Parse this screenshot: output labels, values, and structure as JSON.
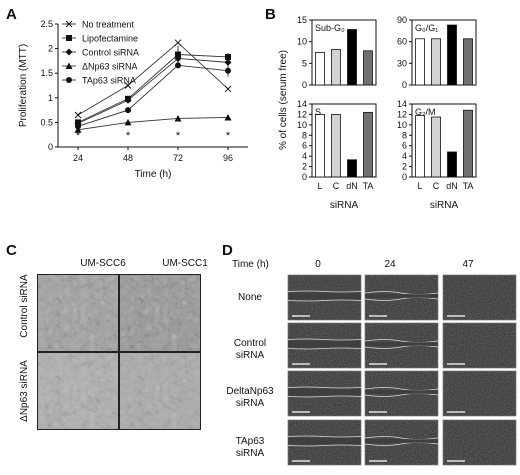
{
  "panels": {
    "A": "A",
    "B": "B",
    "C": "C",
    "D": "D"
  },
  "chart_data": [
    {
      "type": "line",
      "id": "A",
      "xlabel": "Time (h)",
      "ylabel": "Proliferation (MTT)",
      "x": [
        24,
        48,
        72,
        96
      ],
      "ylim": [
        0,
        2.5
      ],
      "yticks": [
        "0",
        "0.5",
        "1",
        "1.5",
        "2",
        "2.5"
      ],
      "xticks": [
        "24",
        "48",
        "72",
        "96"
      ],
      "series": [
        {
          "name": "No treatment",
          "marker": "x",
          "values": [
            0.65,
            1.25,
            2.12,
            1.18
          ]
        },
        {
          "name": "Lipofectamine",
          "marker": "square",
          "values": [
            0.5,
            0.98,
            1.88,
            1.83
          ]
        },
        {
          "name": "Control siRNA",
          "marker": "diamond",
          "values": [
            0.48,
            0.95,
            1.8,
            1.72
          ]
        },
        {
          "name": "ΔNp63 siRNA",
          "marker": "triangle",
          "values": [
            0.35,
            0.5,
            0.58,
            0.6
          ]
        },
        {
          "name": "TAp63 siRNA",
          "marker": "circle",
          "values": [
            0.42,
            0.75,
            1.66,
            1.55
          ]
        }
      ],
      "annotations": [
        "*",
        "*",
        "*",
        "*"
      ]
    },
    {
      "type": "bar",
      "id": "B",
      "ylabel": "% of cells (serum free)",
      "xlabel": "siRNA",
      "categories": [
        "L",
        "C",
        "dN",
        "TA"
      ],
      "bar_colors": [
        "#ffffff",
        "#d3d3d3",
        "#000000",
        "#707070"
      ],
      "subplots": [
        {
          "title": "Sub-G₀",
          "ylim": [
            0,
            15
          ],
          "yticks": [
            "0",
            "5",
            "10",
            "15"
          ],
          "values": [
            7.5,
            8.2,
            12.8,
            7.9
          ]
        },
        {
          "title": "G₀/G₁",
          "ylim": [
            0,
            90
          ],
          "yticks": [
            "0",
            "30",
            "60",
            "90"
          ],
          "values": [
            64,
            64,
            83,
            64
          ]
        },
        {
          "title": "S",
          "ylim": [
            0,
            14
          ],
          "yticks": [
            "0",
            "2",
            "4",
            "6",
            "8",
            "10",
            "12",
            "14"
          ],
          "values": [
            12,
            12,
            3.3,
            12.4
          ]
        },
        {
          "title": "G₂/M",
          "ylim": [
            0,
            14
          ],
          "yticks": [
            "0",
            "2",
            "4",
            "6",
            "8",
            "10",
            "12",
            "14"
          ],
          "values": [
            11.8,
            11.5,
            4.8,
            12.8
          ]
        }
      ]
    }
  ],
  "panelC": {
    "columns": [
      "UM-SCC6",
      "UM-SCC1"
    ],
    "rows": [
      "Control siRNA",
      "ΔNp63 siRNA"
    ]
  },
  "panelD": {
    "time_label": "Time (h)",
    "times": [
      "0",
      "24",
      "47"
    ],
    "rows": [
      [
        "None",
        ""
      ],
      [
        "Control",
        "siRNA"
      ],
      [
        "DeltaNp63",
        "siRNA"
      ],
      [
        "TAp63",
        "siRNA"
      ]
    ]
  }
}
